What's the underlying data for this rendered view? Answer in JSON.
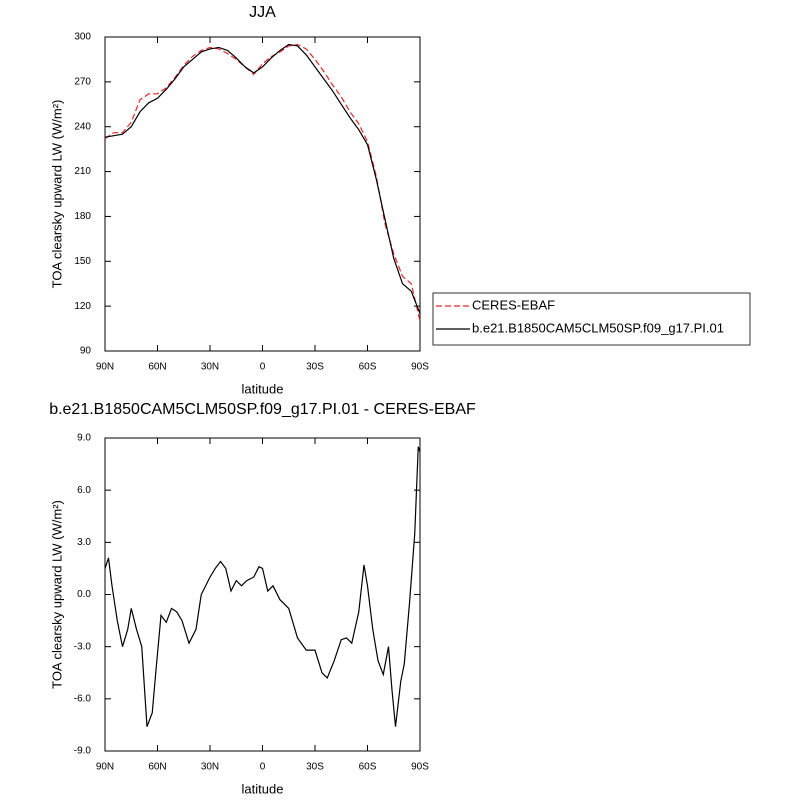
{
  "chart_data": [
    {
      "type": "line",
      "title": "JJA",
      "xlabel": "latitude",
      "ylabel": "TOA clearsky upward LW (W/m²)",
      "x": [
        90,
        85,
        80,
        75,
        70,
        65,
        60,
        55,
        50,
        45,
        40,
        35,
        30,
        25,
        20,
        15,
        10,
        5,
        0,
        -5,
        -10,
        -15,
        -20,
        -25,
        -30,
        -35,
        -40,
        -45,
        -50,
        -55,
        -60,
        -65,
        -70,
        -75,
        -80,
        -85,
        -90
      ],
      "series": [
        {
          "name": "CERES-EBAF",
          "color": "#e8262a",
          "dashed": true,
          "values": [
            232,
            236,
            236,
            243,
            258,
            262,
            262,
            266,
            273,
            281,
            287,
            291,
            293,
            292,
            289,
            285,
            280,
            275,
            282,
            287,
            290,
            294,
            295,
            292,
            285,
            277,
            268,
            260,
            250,
            242,
            230,
            207,
            175,
            155,
            140,
            135,
            110
          ]
        },
        {
          "name": "b.e21.B1850CAM5CLM50SP.f09_g17.PI.01",
          "color": "#000000",
          "dashed": false,
          "values": [
            233,
            234,
            235,
            240,
            250,
            256,
            259,
            265,
            272,
            280,
            285,
            290,
            292,
            293,
            291,
            286,
            280,
            276,
            280,
            286,
            291,
            295,
            294,
            288,
            280,
            272,
            264,
            255,
            246,
            238,
            228,
            205,
            178,
            152,
            135,
            130,
            115
          ]
        }
      ],
      "xlim": [
        90,
        -90
      ],
      "xticks": [
        {
          "value": 90,
          "label": "90N"
        },
        {
          "value": 60,
          "label": "60N"
        },
        {
          "value": 30,
          "label": "30N"
        },
        0,
        {
          "value": -30,
          "label": "30S"
        },
        {
          "value": -60,
          "label": "60S"
        },
        {
          "value": -90,
          "label": "90S"
        }
      ],
      "ylim": [
        90,
        300
      ],
      "yticks": [
        90,
        120,
        150,
        180,
        210,
        240,
        270,
        300
      ],
      "legend": "right"
    },
    {
      "type": "line",
      "title": "b.e21.B1850CAM5CLM50SP.f09_g17.PI.01 - CERES-EBAF",
      "xlabel": "latitude",
      "ylabel": "TOA clearsky upward LW (W/m²)",
      "x": [
        90,
        88,
        86,
        83,
        80,
        77,
        75,
        72,
        69,
        66,
        63,
        61,
        58,
        55,
        52,
        49,
        46,
        42,
        38,
        35,
        30,
        27,
        24,
        21,
        18,
        15,
        12,
        9,
        5,
        2,
        0,
        -3,
        -6,
        -10,
        -15,
        -20,
        -25,
        -30,
        -34,
        -37,
        -41,
        -45,
        -48,
        -51,
        -55,
        -58,
        -60,
        -63,
        -66,
        -69,
        -72,
        -74,
        -76,
        -79,
        -81,
        -84,
        -87,
        -89,
        -90
      ],
      "color": "#000000",
      "values": [
        1.5,
        2.1,
        0.5,
        -1.5,
        -3.0,
        -2.0,
        -0.8,
        -2.0,
        -3.0,
        -7.6,
        -6.8,
        -4.5,
        -1.2,
        -1.6,
        -0.8,
        -1.0,
        -1.5,
        -2.8,
        -2.0,
        0,
        1.0,
        1.5,
        1.9,
        1.5,
        0.2,
        0.8,
        0.5,
        0.8,
        1.0,
        1.6,
        1.5,
        0.2,
        0.5,
        -0.3,
        -0.8,
        -2.5,
        -3.2,
        -3.2,
        -4.5,
        -4.8,
        -3.8,
        -2.6,
        -2.5,
        -2.8,
        -1.0,
        1.7,
        0.5,
        -2.0,
        -3.8,
        -4.6,
        -3.0,
        -5.5,
        -7.6,
        -5.0,
        -4.0,
        -0.5,
        3.5,
        8.5,
        8.2
      ],
      "xlim": [
        90,
        -90
      ],
      "xticks": [
        {
          "value": 90,
          "label": "90N"
        },
        {
          "value": 60,
          "label": "60N"
        },
        {
          "value": 30,
          "label": "30N"
        },
        0,
        {
          "value": -30,
          "label": "30S"
        },
        {
          "value": -60,
          "label": "60S"
        },
        {
          "value": -90,
          "label": "90S"
        }
      ],
      "ylim": [
        -9,
        9
      ],
      "yticks": [
        {
          "value": -9,
          "label": "-9.0"
        },
        {
          "value": -6,
          "label": "-6.0"
        },
        {
          "value": -3,
          "label": "-3.0"
        },
        {
          "value": 0,
          "label": "0.0"
        },
        {
          "value": 3,
          "label": "3.0"
        },
        {
          "value": 6,
          "label": "6.0"
        },
        {
          "value": 9,
          "label": "9.0"
        }
      ]
    }
  ]
}
